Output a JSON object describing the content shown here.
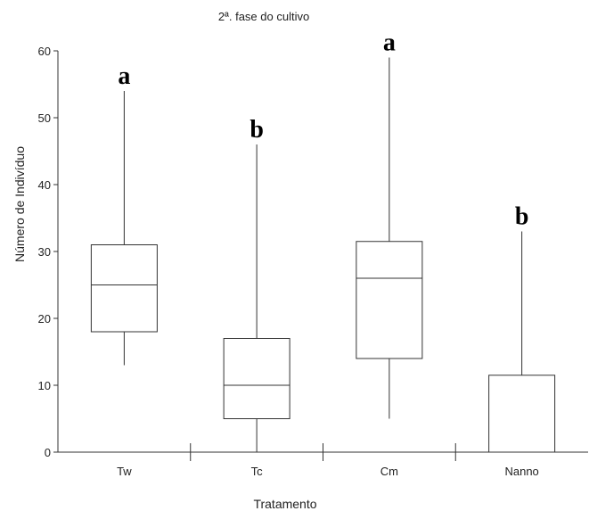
{
  "chart_data": {
    "type": "boxplot",
    "title": "2ª. fase do cultivo",
    "xlabel": "Tratamento",
    "ylabel": "Número de Indivíduo",
    "ylim": [
      0,
      60
    ],
    "yticks": [
      0,
      10,
      20,
      30,
      40,
      50,
      60
    ],
    "grid": false,
    "categories": [
      "Tw",
      "Tc",
      "Cm",
      "Nanno"
    ],
    "boxes": [
      {
        "category": "Tw",
        "min": 13,
        "q1": 18,
        "median": 25,
        "q3": 31,
        "max": 54,
        "letter": "a"
      },
      {
        "category": "Tc",
        "min": 0,
        "q1": 5,
        "median": 10,
        "q3": 17,
        "max": 46,
        "letter": "b"
      },
      {
        "category": "Cm",
        "min": 5,
        "q1": 14,
        "median": 26,
        "q3": 31.5,
        "max": 59,
        "letter": "a"
      },
      {
        "category": "Nanno",
        "min": 0,
        "q1": 0,
        "median": 0,
        "q3": 11.5,
        "max": 33,
        "letter": "b"
      }
    ],
    "colors": {
      "line": "#333333",
      "box_fill": "#ffffff",
      "letter": "#000000"
    }
  }
}
